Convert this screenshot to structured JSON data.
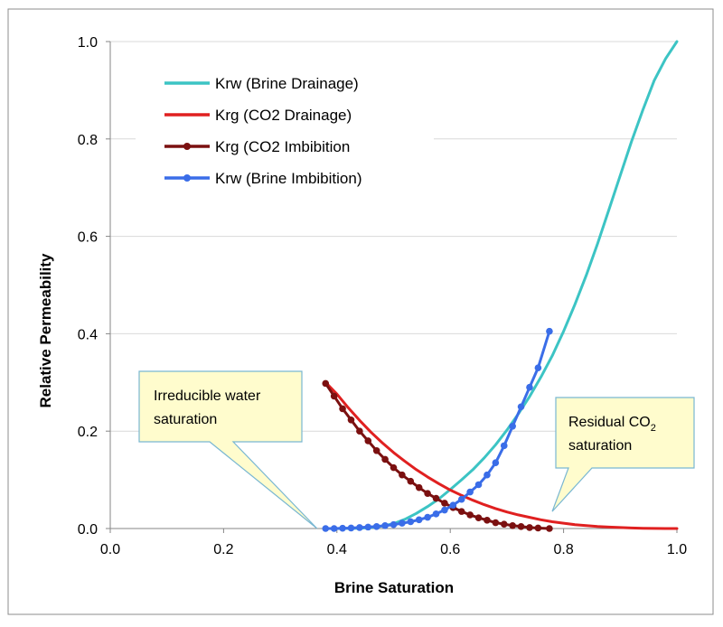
{
  "chart_data": {
    "type": "line",
    "title": "",
    "xlabel": "Brine Saturation",
    "ylabel": "Relative Permeability",
    "xlim": [
      0,
      1
    ],
    "ylim": [
      0,
      1
    ],
    "x_ticks": [
      "0.0",
      "0.2",
      "0.4",
      "0.6",
      "0.8",
      "1.0"
    ],
    "y_ticks": [
      "0.0",
      "0.2",
      "0.4",
      "0.6",
      "0.8",
      "1.0"
    ],
    "grid": "horizontal",
    "legend_position": "top-left",
    "series": [
      {
        "name": "Krw (Brine Drainage)",
        "color": "#3cc4c4",
        "markers": false,
        "x": [
          0.38,
          0.4,
          0.42,
          0.44,
          0.46,
          0.48,
          0.5,
          0.52,
          0.54,
          0.56,
          0.58,
          0.6,
          0.62,
          0.64,
          0.66,
          0.68,
          0.7,
          0.72,
          0.74,
          0.76,
          0.78,
          0.8,
          0.82,
          0.84,
          0.86,
          0.88,
          0.9,
          0.92,
          0.94,
          0.96,
          0.98,
          1.0
        ],
        "values": [
          0.0,
          0.0,
          0.0001,
          0.0006,
          0.002,
          0.005,
          0.01,
          0.019,
          0.031,
          0.045,
          0.061,
          0.08,
          0.1,
          0.121,
          0.145,
          0.172,
          0.202,
          0.235,
          0.271,
          0.311,
          0.355,
          0.405,
          0.46,
          0.52,
          0.585,
          0.655,
          0.725,
          0.795,
          0.86,
          0.92,
          0.965,
          1.0
        ]
      },
      {
        "name": "Krg (CO2 Drainage)",
        "color": "#e02020",
        "markers": false,
        "x": [
          0.38,
          0.4,
          0.42,
          0.44,
          0.46,
          0.48,
          0.5,
          0.52,
          0.54,
          0.56,
          0.58,
          0.6,
          0.62,
          0.64,
          0.66,
          0.68,
          0.7,
          0.72,
          0.74,
          0.76,
          0.78,
          0.8,
          0.82,
          0.84,
          0.86,
          0.88,
          0.9,
          0.92,
          0.94,
          0.96,
          0.98,
          1.0
        ],
        "values": [
          0.3,
          0.276,
          0.248,
          0.222,
          0.198,
          0.176,
          0.156,
          0.138,
          0.121,
          0.106,
          0.092,
          0.079,
          0.068,
          0.058,
          0.049,
          0.041,
          0.034,
          0.028,
          0.023,
          0.018,
          0.014,
          0.011,
          0.008,
          0.006,
          0.004,
          0.003,
          0.002,
          0.0012,
          0.0006,
          0.0002,
          0.0,
          0.0
        ]
      },
      {
        "name": "Krg (CO2 Imbibition",
        "color": "#7b1010",
        "markers": true,
        "x": [
          0.38,
          0.395,
          0.41,
          0.425,
          0.44,
          0.455,
          0.47,
          0.485,
          0.5,
          0.515,
          0.53,
          0.545,
          0.56,
          0.575,
          0.59,
          0.605,
          0.62,
          0.635,
          0.65,
          0.665,
          0.68,
          0.695,
          0.71,
          0.725,
          0.74,
          0.755,
          0.775
        ],
        "values": [
          0.298,
          0.272,
          0.246,
          0.223,
          0.2,
          0.18,
          0.16,
          0.142,
          0.125,
          0.11,
          0.097,
          0.084,
          0.072,
          0.062,
          0.052,
          0.043,
          0.035,
          0.028,
          0.022,
          0.017,
          0.012,
          0.009,
          0.006,
          0.004,
          0.002,
          0.001,
          0.0
        ]
      },
      {
        "name": "Krw (Brine Imbibition)",
        "color": "#3a6de8",
        "markers": true,
        "x": [
          0.38,
          0.395,
          0.41,
          0.425,
          0.44,
          0.455,
          0.47,
          0.485,
          0.5,
          0.515,
          0.53,
          0.545,
          0.56,
          0.575,
          0.59,
          0.605,
          0.62,
          0.635,
          0.65,
          0.665,
          0.68,
          0.695,
          0.71,
          0.725,
          0.74,
          0.755,
          0.775
        ],
        "values": [
          0.0,
          0.0,
          0.0005,
          0.001,
          0.002,
          0.003,
          0.004,
          0.006,
          0.008,
          0.011,
          0.014,
          0.018,
          0.023,
          0.03,
          0.038,
          0.048,
          0.06,
          0.075,
          0.09,
          0.11,
          0.135,
          0.17,
          0.21,
          0.25,
          0.29,
          0.33,
          0.405
        ]
      }
    ],
    "annotations": [
      {
        "id": "irreducible",
        "lines": [
          "Irreducible water",
          "saturation"
        ],
        "point": [
          0.365,
          0.0
        ]
      },
      {
        "id": "residual",
        "line1_prefix": "Residual CO",
        "line1_sub": "2",
        "line2": "saturation",
        "point": [
          0.78,
          0.035
        ]
      }
    ]
  }
}
